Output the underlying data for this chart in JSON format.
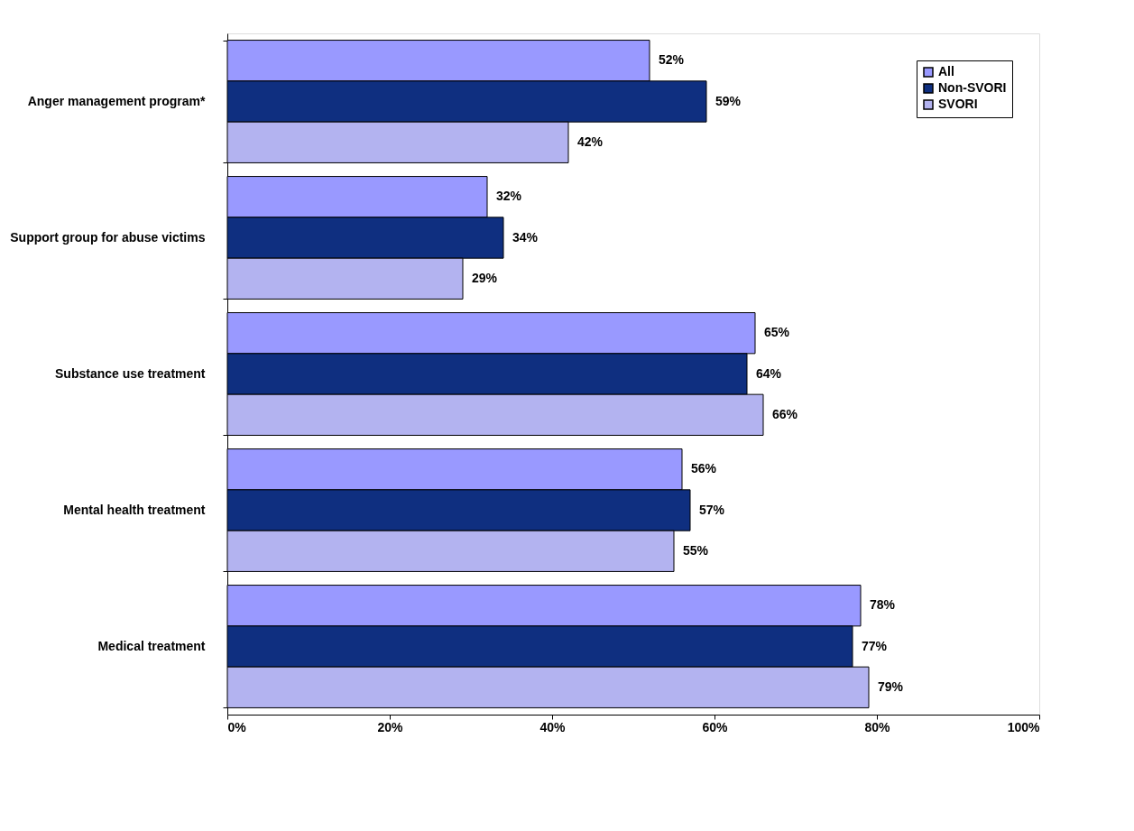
{
  "chart_data": {
    "type": "bar",
    "orientation": "horizontal",
    "categories": [
      "Anger management program*",
      "Support group for abuse victims",
      "Substance use treatment",
      "Mental health treatment",
      "Medical treatment"
    ],
    "series": [
      {
        "name": "All",
        "color": "#9999ff",
        "values": [
          52,
          32,
          65,
          56,
          78
        ],
        "value_labels": [
          "52%",
          "32%",
          "65%",
          "56%",
          "78%"
        ]
      },
      {
        "name": "Non-SVORI",
        "color": "#0f2f80",
        "values": [
          59,
          34,
          64,
          57,
          77
        ],
        "value_labels": [
          "59%",
          "34%",
          "64%",
          "57%",
          "77%"
        ]
      },
      {
        "name": "SVORI",
        "color": "#b3b3f0",
        "values": [
          42,
          29,
          66,
          55,
          79
        ],
        "value_labels": [
          "42%",
          "29%",
          "66%",
          "55%",
          "79%"
        ]
      }
    ],
    "xlim": [
      0,
      100
    ],
    "xticks": [
      {
        "value": 0,
        "label": "0%"
      },
      {
        "value": 20,
        "label": "20%"
      },
      {
        "value": 40,
        "label": "40%"
      },
      {
        "value": 60,
        "label": "60%"
      },
      {
        "value": 80,
        "label": "80%"
      },
      {
        "value": 100,
        "label": "100%"
      }
    ],
    "grid": false,
    "legend": "top right"
  }
}
